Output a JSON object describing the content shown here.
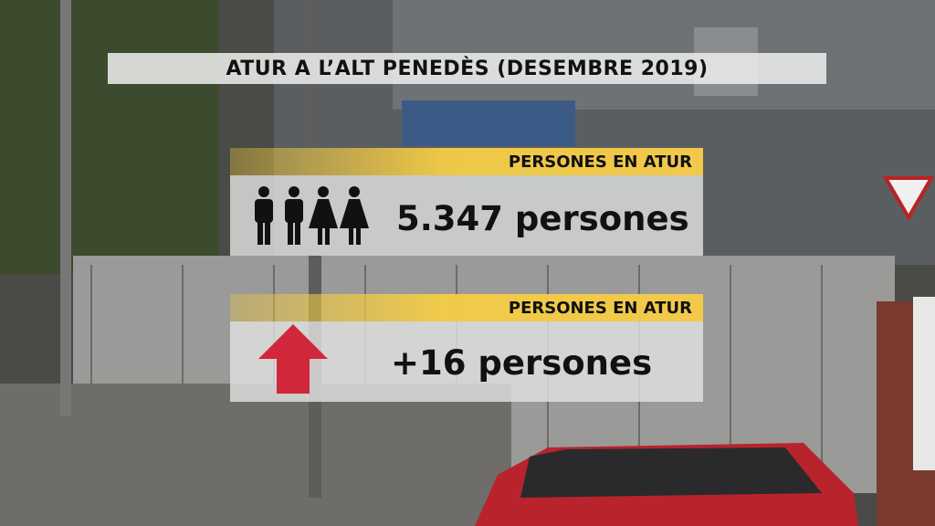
{
  "title": "ATUR A L’ALT PENEDÈS (DESEMBRE 2019)",
  "panels": [
    {
      "label": "PERSONES EN ATUR",
      "value": "5.347 persones"
    },
    {
      "label": "PERSONES EN ATUR",
      "value": "+16 persones"
    }
  ]
}
